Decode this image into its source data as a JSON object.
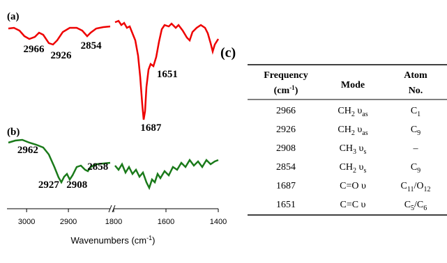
{
  "figure": {
    "panel_a": {
      "label": "(a)",
      "peaks": [
        2966,
        2926,
        2854,
        1651,
        1687
      ]
    },
    "panel_b": {
      "label": "(b)",
      "peaks": [
        2962,
        2927,
        2908,
        2858
      ]
    },
    "panel_c": {
      "label": "(c)"
    },
    "x_axis": {
      "label": "Wavenumbers (cm",
      "label_sup": "-1",
      "label_end": ")",
      "segments": [
        {
          "xlim": [
            3047,
            2800
          ],
          "xticks": [
            3000,
            2900
          ]
        },
        {
          "xlim": [
            1800,
            1400
          ],
          "xticks": [
            1800,
            1600,
            1400
          ]
        }
      ]
    }
  },
  "table": {
    "header": {
      "frequency": "Frequency",
      "frequency_unit": "(cm",
      "frequency_sup": "-1",
      "frequency_end": ")",
      "mode": "Mode",
      "atom": "Atom",
      "atom_line2": "No."
    },
    "rows": [
      {
        "frequency": 2966,
        "mode": [
          "CH",
          "2",
          " υ",
          "as"
        ],
        "atom": [
          "C",
          "1"
        ]
      },
      {
        "frequency": 2926,
        "mode": [
          "CH",
          "2",
          " υ",
          "as"
        ],
        "atom": [
          "C",
          "9"
        ]
      },
      {
        "frequency": 2908,
        "mode": [
          "CH",
          "3",
          " υ",
          "s"
        ],
        "atom": [
          "–"
        ]
      },
      {
        "frequency": 2854,
        "mode": [
          "CH",
          "2",
          " υ",
          "s"
        ],
        "atom": [
          "C",
          "9"
        ]
      },
      {
        "frequency": 1687,
        "mode": [
          "C=O υ"
        ],
        "atom": [
          "C",
          "11",
          "/O",
          "12"
        ]
      },
      {
        "frequency": 1651,
        "mode": [
          "C=C υ"
        ],
        "atom": [
          "C",
          "5",
          "/C",
          "6"
        ]
      }
    ]
  }
}
